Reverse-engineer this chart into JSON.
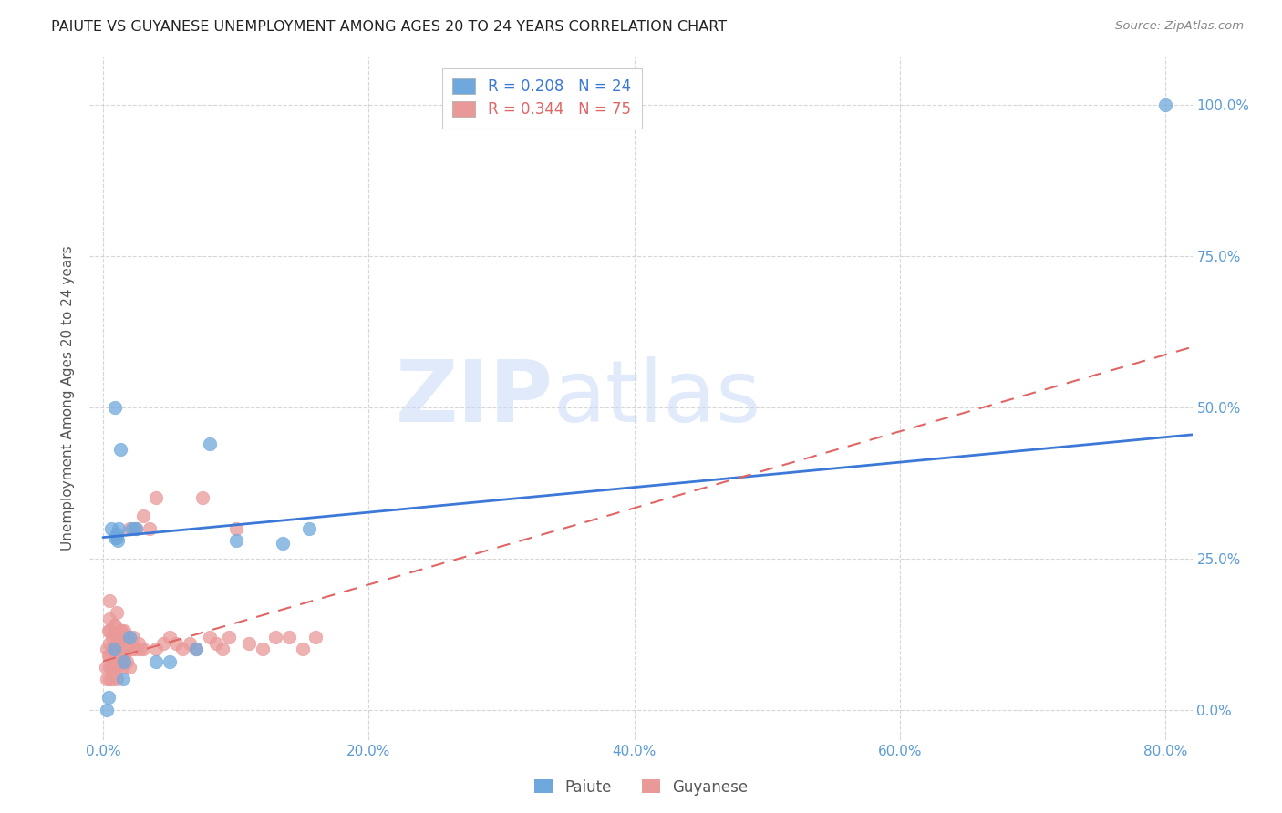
{
  "title": "PAIUTE VS GUYANESE UNEMPLOYMENT AMONG AGES 20 TO 24 YEARS CORRELATION CHART",
  "source": "Source: ZipAtlas.com",
  "ylabel": "Unemployment Among Ages 20 to 24 years",
  "xlim": [
    -0.01,
    0.82
  ],
  "ylim": [
    -0.05,
    1.08
  ],
  "paiute_color": "#6fa8dc",
  "paiute_edge_color": "#6fa8dc",
  "guyanese_color": "#ea9999",
  "guyanese_edge_color": "#ea9999",
  "paiute_line_color": "#3c78d8",
  "guyanese_line_color": "#e06666",
  "legend_r_paiute": "R = 0.208",
  "legend_n_paiute": "N = 24",
  "legend_r_guyanese": "R = 0.344",
  "legend_n_guyanese": "N = 75",
  "watermark_zip": "ZIP",
  "watermark_atlas": "atlas",
  "background_color": "#ffffff",
  "grid_color": "#cccccc",
  "title_color": "#222222",
  "tick_color": "#5b9bd5",
  "ylabel_color": "#555555",
  "paiute_x": [
    0.003,
    0.004,
    0.006,
    0.008,
    0.009,
    0.009,
    0.01,
    0.01,
    0.011,
    0.012,
    0.013,
    0.015,
    0.016,
    0.02,
    0.022,
    0.025,
    0.04,
    0.05,
    0.07,
    0.08,
    0.1,
    0.135,
    0.155,
    0.8
  ],
  "paiute_y": [
    0.0,
    0.02,
    0.3,
    0.1,
    0.5,
    0.285,
    0.285,
    0.29,
    0.28,
    0.3,
    0.43,
    0.05,
    0.08,
    0.12,
    0.3,
    0.3,
    0.08,
    0.08,
    0.1,
    0.44,
    0.28,
    0.275,
    0.3,
    1.0
  ],
  "guyanese_x": [
    0.002,
    0.003,
    0.003,
    0.004,
    0.004,
    0.005,
    0.005,
    0.005,
    0.005,
    0.005,
    0.005,
    0.005,
    0.006,
    0.006,
    0.007,
    0.007,
    0.007,
    0.008,
    0.008,
    0.008,
    0.009,
    0.009,
    0.009,
    0.01,
    0.01,
    0.01,
    0.01,
    0.01,
    0.011,
    0.011,
    0.012,
    0.012,
    0.013,
    0.013,
    0.014,
    0.014,
    0.015,
    0.015,
    0.016,
    0.016,
    0.017,
    0.018,
    0.018,
    0.019,
    0.02,
    0.02,
    0.022,
    0.023,
    0.025,
    0.025,
    0.027,
    0.028,
    0.03,
    0.03,
    0.035,
    0.04,
    0.04,
    0.045,
    0.05,
    0.055,
    0.06,
    0.065,
    0.07,
    0.075,
    0.08,
    0.085,
    0.09,
    0.095,
    0.1,
    0.11,
    0.12,
    0.13,
    0.14,
    0.15,
    0.16
  ],
  "guyanese_y": [
    0.07,
    0.05,
    0.1,
    0.09,
    0.13,
    0.05,
    0.07,
    0.09,
    0.11,
    0.13,
    0.15,
    0.18,
    0.07,
    0.1,
    0.05,
    0.08,
    0.12,
    0.07,
    0.1,
    0.14,
    0.07,
    0.1,
    0.14,
    0.05,
    0.07,
    0.09,
    0.11,
    0.16,
    0.09,
    0.12,
    0.08,
    0.11,
    0.09,
    0.13,
    0.09,
    0.13,
    0.07,
    0.12,
    0.09,
    0.13,
    0.1,
    0.08,
    0.12,
    0.1,
    0.07,
    0.3,
    0.1,
    0.12,
    0.1,
    0.3,
    0.11,
    0.1,
    0.1,
    0.32,
    0.3,
    0.1,
    0.35,
    0.11,
    0.12,
    0.11,
    0.1,
    0.11,
    0.1,
    0.35,
    0.12,
    0.11,
    0.1,
    0.12,
    0.3,
    0.11,
    0.1,
    0.12,
    0.12,
    0.1,
    0.12
  ],
  "paiute_line_x": [
    0.0,
    0.82
  ],
  "paiute_line_y": [
    0.285,
    0.455
  ],
  "guyanese_line_x": [
    0.0,
    0.82
  ],
  "guyanese_line_y": [
    0.08,
    0.6
  ]
}
